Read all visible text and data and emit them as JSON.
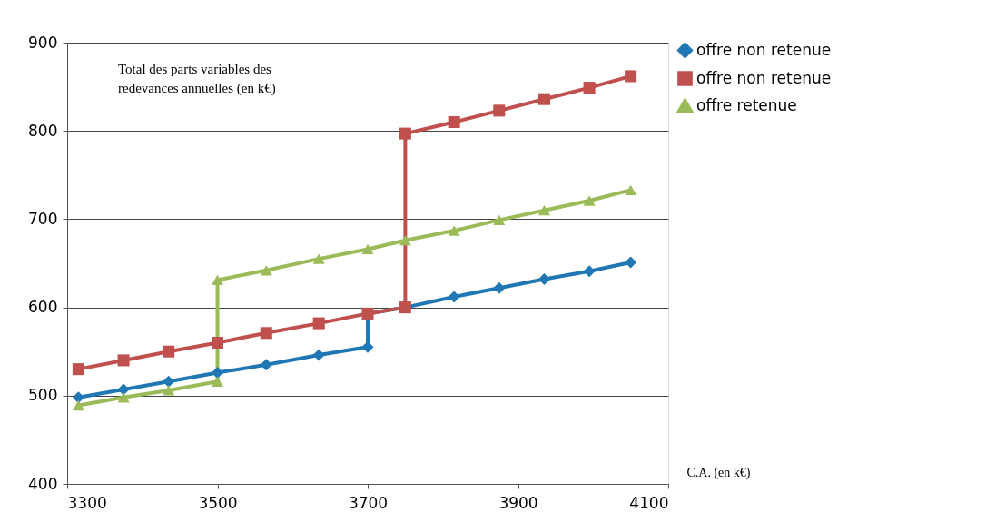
{
  "chart_data": {
    "type": "line",
    "xlabel": "C.A. (en k€)",
    "annotations": [
      "Total des parts variables des redevances annuelles (en k€)"
    ],
    "xlim": [
      3300,
      4100
    ],
    "xticks": [
      3300,
      3500,
      3700,
      3900,
      4100
    ],
    "ylim": [
      400,
      900
    ],
    "yticks": [
      400,
      500,
      600,
      700,
      800,
      900
    ],
    "grid": "y",
    "legend": "right",
    "series": [
      {
        "name": "offre non retenue",
        "color": "#1f77b4",
        "marker": "diamond",
        "x": [
          3315,
          3375,
          3435,
          3500,
          3565,
          3635,
          3700,
          3700,
          3750,
          3815,
          3875,
          3935,
          3995,
          4050
        ],
        "values": [
          498,
          507,
          516,
          526,
          535,
          546,
          555,
          593,
          600,
          612,
          622,
          632,
          641,
          651
        ]
      },
      {
        "name": "offre non retenue",
        "color": "#c0504d",
        "marker": "square",
        "x": [
          3315,
          3375,
          3435,
          3500,
          3565,
          3635,
          3700,
          3750,
          3750,
          3815,
          3875,
          3935,
          3995,
          4050
        ],
        "values": [
          530,
          540,
          550,
          560,
          571,
          582,
          593,
          600,
          797,
          810,
          823,
          836,
          849,
          862
        ]
      },
      {
        "name": "offre retenue",
        "color": "#9bbb59",
        "marker": "triangle",
        "x": [
          3315,
          3375,
          3435,
          3500,
          3500,
          3565,
          3635,
          3700,
          3750,
          3815,
          3875,
          3935,
          3995,
          4050
        ],
        "values": [
          489,
          498,
          506,
          516,
          631,
          642,
          655,
          666,
          676,
          687,
          699,
          710,
          721,
          733
        ]
      }
    ]
  }
}
